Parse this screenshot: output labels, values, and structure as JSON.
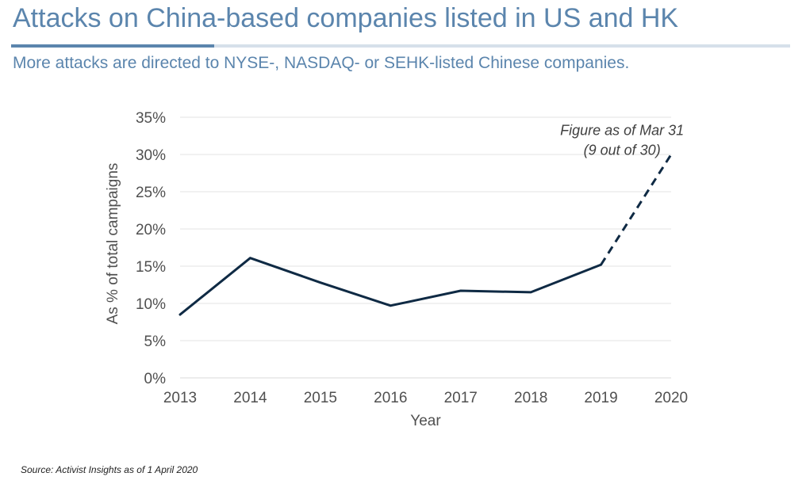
{
  "header": {
    "title": "Attacks on China-based companies listed in US and HK",
    "subtitle": "More attacks are directed to NYSE-, NASDAQ- or SEHK-listed Chinese companies."
  },
  "footer": {
    "source": "Source: Activist Insights as of 1 April 2020"
  },
  "colors": {
    "accent": "#5b85ad",
    "line": "#0f2a44",
    "grid": "#e3e3e3"
  },
  "chart_data": {
    "type": "line",
    "x": [
      2013,
      2014,
      2015,
      2016,
      2017,
      2018,
      2019,
      2020
    ],
    "xlabel": "Year",
    "ylabel": "As % of total campaigns",
    "ylim": [
      0,
      35
    ],
    "yticks": [
      0,
      5,
      10,
      15,
      20,
      25,
      30,
      35
    ],
    "ytick_format": "percent",
    "grid": true,
    "series": [
      {
        "values": [
          8.5,
          16.1,
          12.8,
          9.7,
          11.7,
          11.5,
          15.2,
          30.0
        ],
        "dashed_from_index": 6
      }
    ],
    "annotation": {
      "lines": [
        "Figure as of Mar 31",
        "(9 out of 30)"
      ],
      "x": 2019.9,
      "y": 32.6
    }
  }
}
